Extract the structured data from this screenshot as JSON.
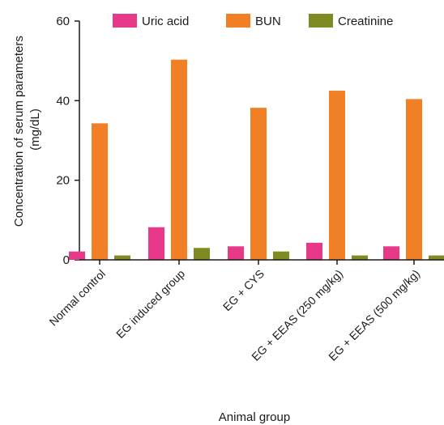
{
  "chart_data": {
    "type": "bar",
    "title": "",
    "xlabel": "Animal group",
    "ylabel_line1": "Concentration of serum parameters",
    "ylabel_line2": "(mg/dL)",
    "ylim": [
      0,
      60
    ],
    "yticks": [
      0,
      20,
      40,
      60
    ],
    "categories": [
      "Normal control",
      "EG induced group",
      "EG + CYS",
      "EG + EEAS (250 mg/kg)",
      "EG + EEAS (500 mg/kg)"
    ],
    "series": [
      {
        "name": "Uric acid",
        "color": "#e8388a",
        "values": [
          2.1,
          8.2,
          3.4,
          4.3,
          3.4
        ]
      },
      {
        "name": "BUN",
        "color": "#f07f25",
        "values": [
          34.3,
          50.3,
          38.2,
          42.5,
          40.4
        ]
      },
      {
        "name": "Creatinine",
        "color": "#7f8b22",
        "values": [
          1.1,
          3.0,
          2.1,
          1.1,
          1.1
        ]
      }
    ],
    "legend_position": "top",
    "grid": false
  }
}
